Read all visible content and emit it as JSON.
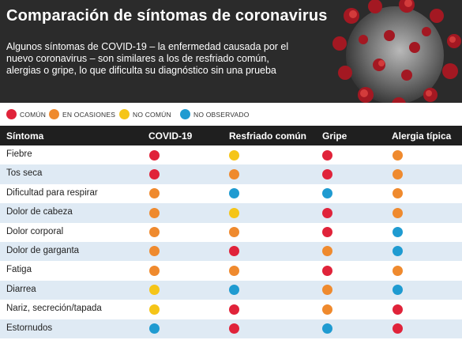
{
  "title": "Comparación de síntomas de coronavirus",
  "subtitle": "Algunos síntomas de COVID-19 – la enfermedad causada por el nuevo coronavirus – son similares a los de resfriado común, alergias o gripe, lo que dificulta su diagnóstico sin una prueba",
  "colors": {
    "comun": "#e0233a",
    "ocasiones": "#ef8a2e",
    "no_comun": "#f5c518",
    "no_observado": "#1f9bd1"
  },
  "legend": [
    {
      "key": "comun",
      "label": "COMÚN"
    },
    {
      "key": "ocasiones",
      "label": "EN OCASIONES"
    },
    {
      "key": "no_comun",
      "label": "NO COMÚN"
    },
    {
      "key": "no_observado",
      "label": "NO OBSERVADO"
    }
  ],
  "columns": [
    "Síntoma",
    "COVID-19",
    "Resfriado común",
    "Gripe",
    "Alergia típica"
  ],
  "rows": [
    {
      "label": "Fiebre",
      "values": [
        "comun",
        "no_comun",
        "comun",
        "ocasiones"
      ]
    },
    {
      "label": "Tos seca",
      "values": [
        "comun",
        "ocasiones",
        "comun",
        "ocasiones"
      ]
    },
    {
      "label": "Dificultad para respirar",
      "values": [
        "ocasiones",
        "no_observado",
        "no_observado",
        "ocasiones"
      ]
    },
    {
      "label": "Dolor de cabeza",
      "values": [
        "ocasiones",
        "no_comun",
        "comun",
        "ocasiones"
      ]
    },
    {
      "label": "Dolor corporal",
      "values": [
        "ocasiones",
        "ocasiones",
        "comun",
        "no_observado"
      ]
    },
    {
      "label": "Dolor de garganta",
      "values": [
        "ocasiones",
        "comun",
        "ocasiones",
        "no_observado"
      ]
    },
    {
      "label": "Fatiga",
      "values": [
        "ocasiones",
        "ocasiones",
        "comun",
        "ocasiones"
      ]
    },
    {
      "label": "Diarrea",
      "values": [
        "no_comun",
        "no_observado",
        "ocasiones",
        "no_observado"
      ]
    },
    {
      "label": "Nariz, secreción/tapada",
      "values": [
        "no_comun",
        "comun",
        "ocasiones",
        "comun"
      ]
    },
    {
      "label": "Estornudos",
      "values": [
        "no_observado",
        "comun",
        "no_observado",
        "comun"
      ]
    }
  ]
}
